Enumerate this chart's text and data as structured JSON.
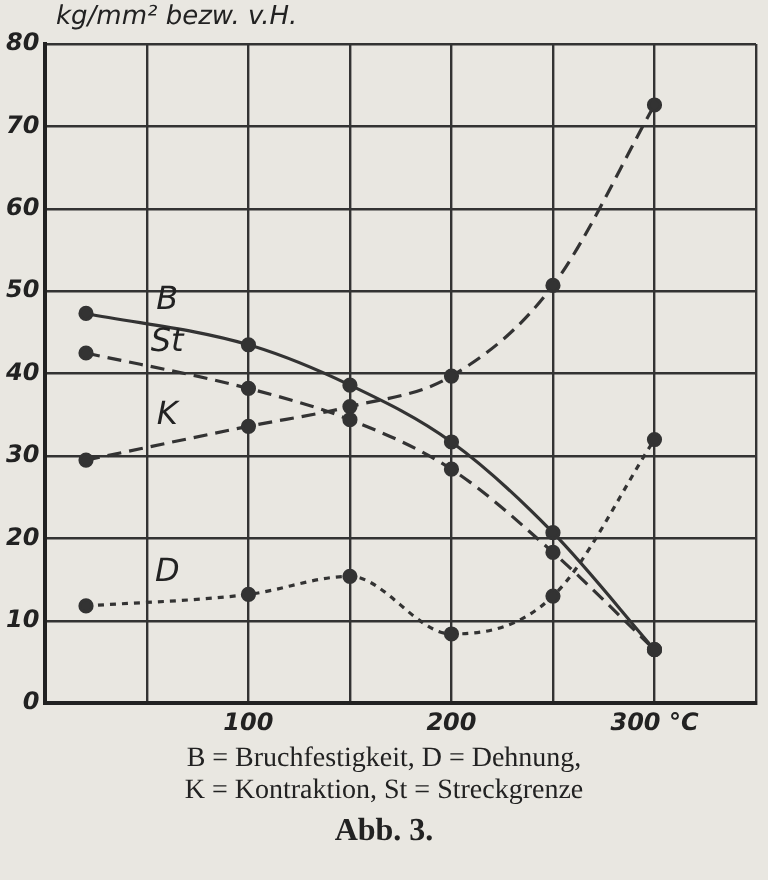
{
  "chart_data": {
    "type": "line",
    "title": "Abb. 3.",
    "ylabel": "kg/mm² bezw. v.H.",
    "x": [
      20,
      100,
      150,
      200,
      250,
      300
    ],
    "series": [
      {
        "name": "B",
        "color": "#333333",
        "line_style": "solid",
        "values": [
          47.3,
          43.5,
          38.6,
          31.7,
          20.7,
          6.5
        ]
      },
      {
        "name": "St",
        "color": "#333333",
        "line_style": "dashed",
        "values": [
          42.5,
          38.2,
          34.4,
          28.4,
          18.3,
          6.5
        ]
      },
      {
        "name": "K",
        "color": "#333333",
        "line_style": "dashed",
        "values": [
          29.5,
          33.6,
          36,
          39.7,
          50.7,
          72.6
        ]
      },
      {
        "name": "D",
        "color": "#333333",
        "line_style": "dotted",
        "values": [
          11.8,
          13.2,
          15.4,
          8.4,
          13,
          32
        ]
      }
    ],
    "xlim": [
      0,
      350
    ],
    "ylim": [
      0,
      80
    ],
    "xticks": [
      {
        "value": 0,
        "label": null
      },
      {
        "value": 50,
        "label": null
      },
      100,
      {
        "value": 150,
        "label": null
      },
      200,
      {
        "value": 250,
        "label": null
      },
      {
        "value": 300,
        "label": "300 °C"
      },
      {
        "value": 350,
        "label": null
      }
    ],
    "yticks": [
      0,
      10,
      20,
      30,
      40,
      50,
      60,
      70,
      80
    ],
    "grid": true,
    "legend": false,
    "marker": "circle",
    "annotations": [
      "B = Bruchfestigkeit,    D = Dehnung,",
      "K = Kontraktion,    St = Streckgrenze"
    ]
  }
}
